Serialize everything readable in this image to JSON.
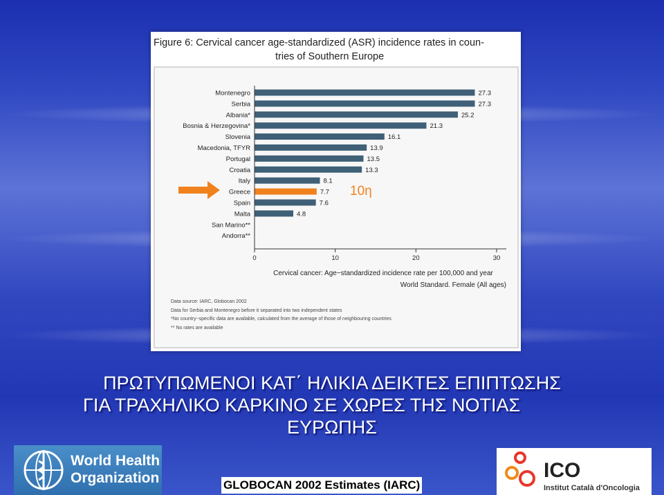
{
  "figure": {
    "title": "Figure 6: Cervical cancer age-standardized (ASR) incidence rates in coun-tries of Southern Europe",
    "title_line1": "Figure 6: Cervical cancer age-standardized (ASR) incidence rates in coun-",
    "title_line2": "tries of Southern Europe"
  },
  "chart_data": {
    "type": "bar",
    "orientation": "horizontal",
    "categories": [
      "Montenegro",
      "Serbia",
      "Albania*",
      "Bosnia & Herzegovina*",
      "Slovenia",
      "Macedonia, TFYR",
      "Portugal",
      "Croatia",
      "Italy",
      "Greece",
      "Spain",
      "Malta",
      "San Marino**",
      "Andorra**"
    ],
    "values": [
      27.3,
      27.3,
      25.2,
      21.3,
      16.1,
      13.9,
      13.5,
      13.3,
      8.1,
      7.7,
      7.6,
      4.8,
      null,
      null
    ],
    "value_labels": [
      "27.3",
      "27.3",
      "25.2",
      "21.3",
      "16.1",
      "13.9",
      "13.5",
      "13.3",
      "8.1",
      "7.7",
      "7.6",
      "4.8",
      "",
      ""
    ],
    "highlight_category": "Greece",
    "highlight_annotation": "10η",
    "xlim": [
      0,
      30
    ],
    "xticks": [
      0,
      10,
      20,
      30
    ],
    "xlabel_line1": "Cervical cancer: Age−standardized incidence rate per 100,000 and year",
    "xlabel_line2": "World Standard. Female (All ages)",
    "colors": {
      "bar": "#3f6077",
      "highlight": "#f0821e",
      "arrow": "#f0821e",
      "annotation": "#f0821e"
    }
  },
  "notes": [
    "Data source: IARC, Globocan 2002",
    "Data for Serbia and Montenegro before it separated into two independent states",
    "*No country−specific data are available, calculated from the average of those of neighbouring countries",
    "** No rates are available"
  ],
  "slide": {
    "heading_line1": "ΠΡΩΤΥΠΩΜΕΝΟΙ ΚΑΤ΄ ΗΛΙΚΙΑ ΔΕΙΚΤΕΣ ΕΠΙΠΤΩΣΗΣ",
    "heading_line2": "ΓΙΑ ΤΡΑΧΗΛΙΚΟ ΚΑΡΚΙΝΟ ΣΕ ΧΩΡΕΣ ΤΗΣ ΝΟΤΙΑΣ",
    "heading_line3": "ΕΥΡΩΠΗΣ",
    "source_caption": "GLOBOCAN 2002 Estimates (IARC)"
  },
  "logos": {
    "who_line1": "World Health",
    "who_line2": "Organization",
    "who_icon": "who-emblem-icon",
    "ico_name": "ICO",
    "ico_full": "Institut Català d'Oncologia",
    "ico_icon": "ico-emblem-icon"
  }
}
